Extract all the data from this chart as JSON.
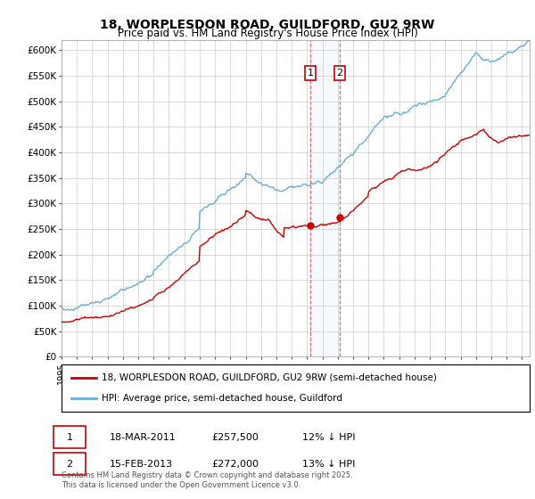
{
  "title": "18, WORPLESDON ROAD, GUILDFORD, GU2 9RW",
  "subtitle": "Price paid vs. HM Land Registry's House Price Index (HPI)",
  "ylabel_ticks": [
    "£0",
    "£50K",
    "£100K",
    "£150K",
    "£200K",
    "£250K",
    "£300K",
    "£350K",
    "£400K",
    "£450K",
    "£500K",
    "£550K",
    "£600K"
  ],
  "ytick_values": [
    0,
    50000,
    100000,
    150000,
    200000,
    250000,
    300000,
    350000,
    400000,
    450000,
    500000,
    550000,
    600000
  ],
  "hpi_color": "#6baed6",
  "price_color": "#cc0000",
  "sale1_date_x": 2011.21,
  "sale1_price": 257500,
  "sale2_date_x": 2013.12,
  "sale2_price": 272000,
  "legend_line1": "18, WORPLESDON ROAD, GUILDFORD, GU2 9RW (semi-detached house)",
  "legend_line2": "HPI: Average price, semi-detached house, Guildford",
  "table_row1": [
    "1",
    "18-MAR-2011",
    "£257,500",
    "12% ↓ HPI"
  ],
  "table_row2": [
    "2",
    "15-FEB-2013",
    "£272,000",
    "13% ↓ HPI"
  ],
  "footer": "Contains HM Land Registry data © Crown copyright and database right 2025.\nThis data is licensed under the Open Government Licence v3.0.",
  "xmin": 1995,
  "xmax": 2025.5,
  "ymin": 0,
  "ymax": 620000
}
